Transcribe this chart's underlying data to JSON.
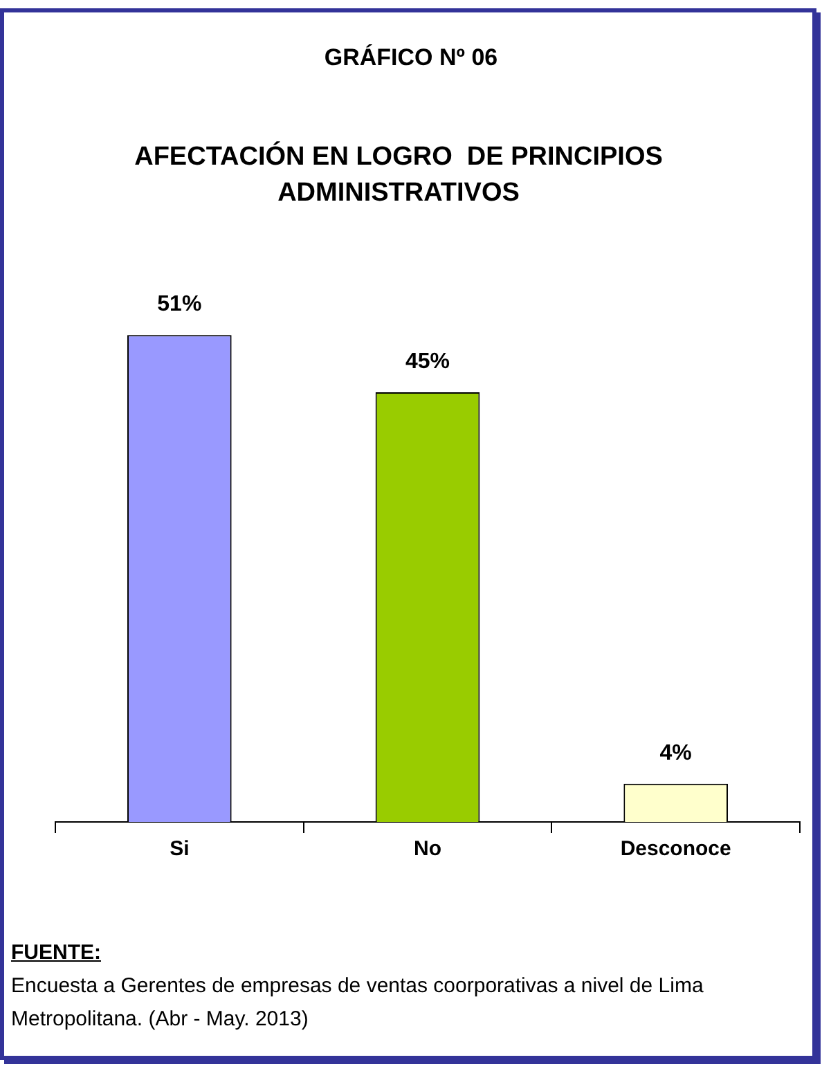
{
  "chart_data": {
    "type": "bar",
    "title": "GRÁFICO Nº 06",
    "subtitle": "AFECTACIÓN EN LOGRO  DE PRINCIPIOS ADMINISTRATIVOS",
    "categories": [
      "Si",
      "No",
      "Desconoce"
    ],
    "values": [
      51,
      45,
      4
    ],
    "colors": [
      "#9999ff",
      "#99cc00",
      "#ffffcc"
    ],
    "value_labels": [
      "51%",
      "45%",
      "4%"
    ],
    "tick_labels": "x",
    "annotations": [
      "FUENTE:",
      "Encuesta a Gerentes de empresas de ventas coorporativas a nivel de Lima Metropolitana. (Abr - May. 2013)"
    ]
  }
}
